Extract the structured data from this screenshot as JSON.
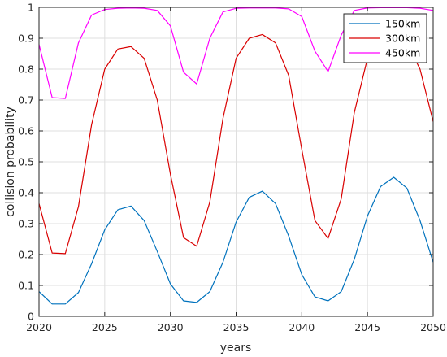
{
  "chart_data": {
    "type": "line",
    "xlabel": "years",
    "ylabel": "collision probability",
    "xlim": [
      2020,
      2050
    ],
    "ylim": [
      0,
      1
    ],
    "xticks": [
      2020,
      2025,
      2030,
      2035,
      2040,
      2045,
      2050
    ],
    "yticks": [
      0,
      0.1,
      0.2,
      0.3,
      0.4,
      0.5,
      0.6,
      0.7,
      0.8,
      0.9,
      1
    ],
    "grid": true,
    "legend_position": "top-right",
    "x": [
      2020,
      2021,
      2022,
      2023,
      2024,
      2025,
      2026,
      2027,
      2028,
      2029,
      2030,
      2031,
      2032,
      2033,
      2034,
      2035,
      2036,
      2037,
      2038,
      2039,
      2040,
      2041,
      2042,
      2043,
      2044,
      2045,
      2046,
      2047,
      2048,
      2049,
      2050
    ],
    "series": [
      {
        "name": "150km",
        "color": "#0072BD",
        "values": [
          0.08,
          0.04,
          0.04,
          0.077,
          0.17,
          0.28,
          0.345,
          0.357,
          0.31,
          0.21,
          0.105,
          0.05,
          0.045,
          0.08,
          0.175,
          0.305,
          0.385,
          0.405,
          0.365,
          0.26,
          0.135,
          0.063,
          0.05,
          0.08,
          0.185,
          0.325,
          0.42,
          0.45,
          0.415,
          0.31,
          0.175
        ]
      },
      {
        "name": "300km",
        "color": "#D90000",
        "values": [
          0.365,
          0.205,
          0.203,
          0.355,
          0.62,
          0.8,
          0.865,
          0.873,
          0.835,
          0.7,
          0.46,
          0.255,
          0.227,
          0.37,
          0.64,
          0.835,
          0.9,
          0.912,
          0.885,
          0.78,
          0.54,
          0.31,
          0.252,
          0.38,
          0.66,
          0.835,
          0.89,
          0.91,
          0.885,
          0.8,
          0.63
        ]
      },
      {
        "name": "450km",
        "color": "#FF00FF",
        "values": [
          0.88,
          0.708,
          0.705,
          0.885,
          0.975,
          0.993,
          0.997,
          0.998,
          0.997,
          0.99,
          0.94,
          0.79,
          0.752,
          0.9,
          0.985,
          0.997,
          0.998,
          0.998,
          0.998,
          0.995,
          0.97,
          0.858,
          0.792,
          0.91,
          0.99,
          0.998,
          0.999,
          0.999,
          0.999,
          0.997,
          0.99
        ]
      }
    ]
  }
}
